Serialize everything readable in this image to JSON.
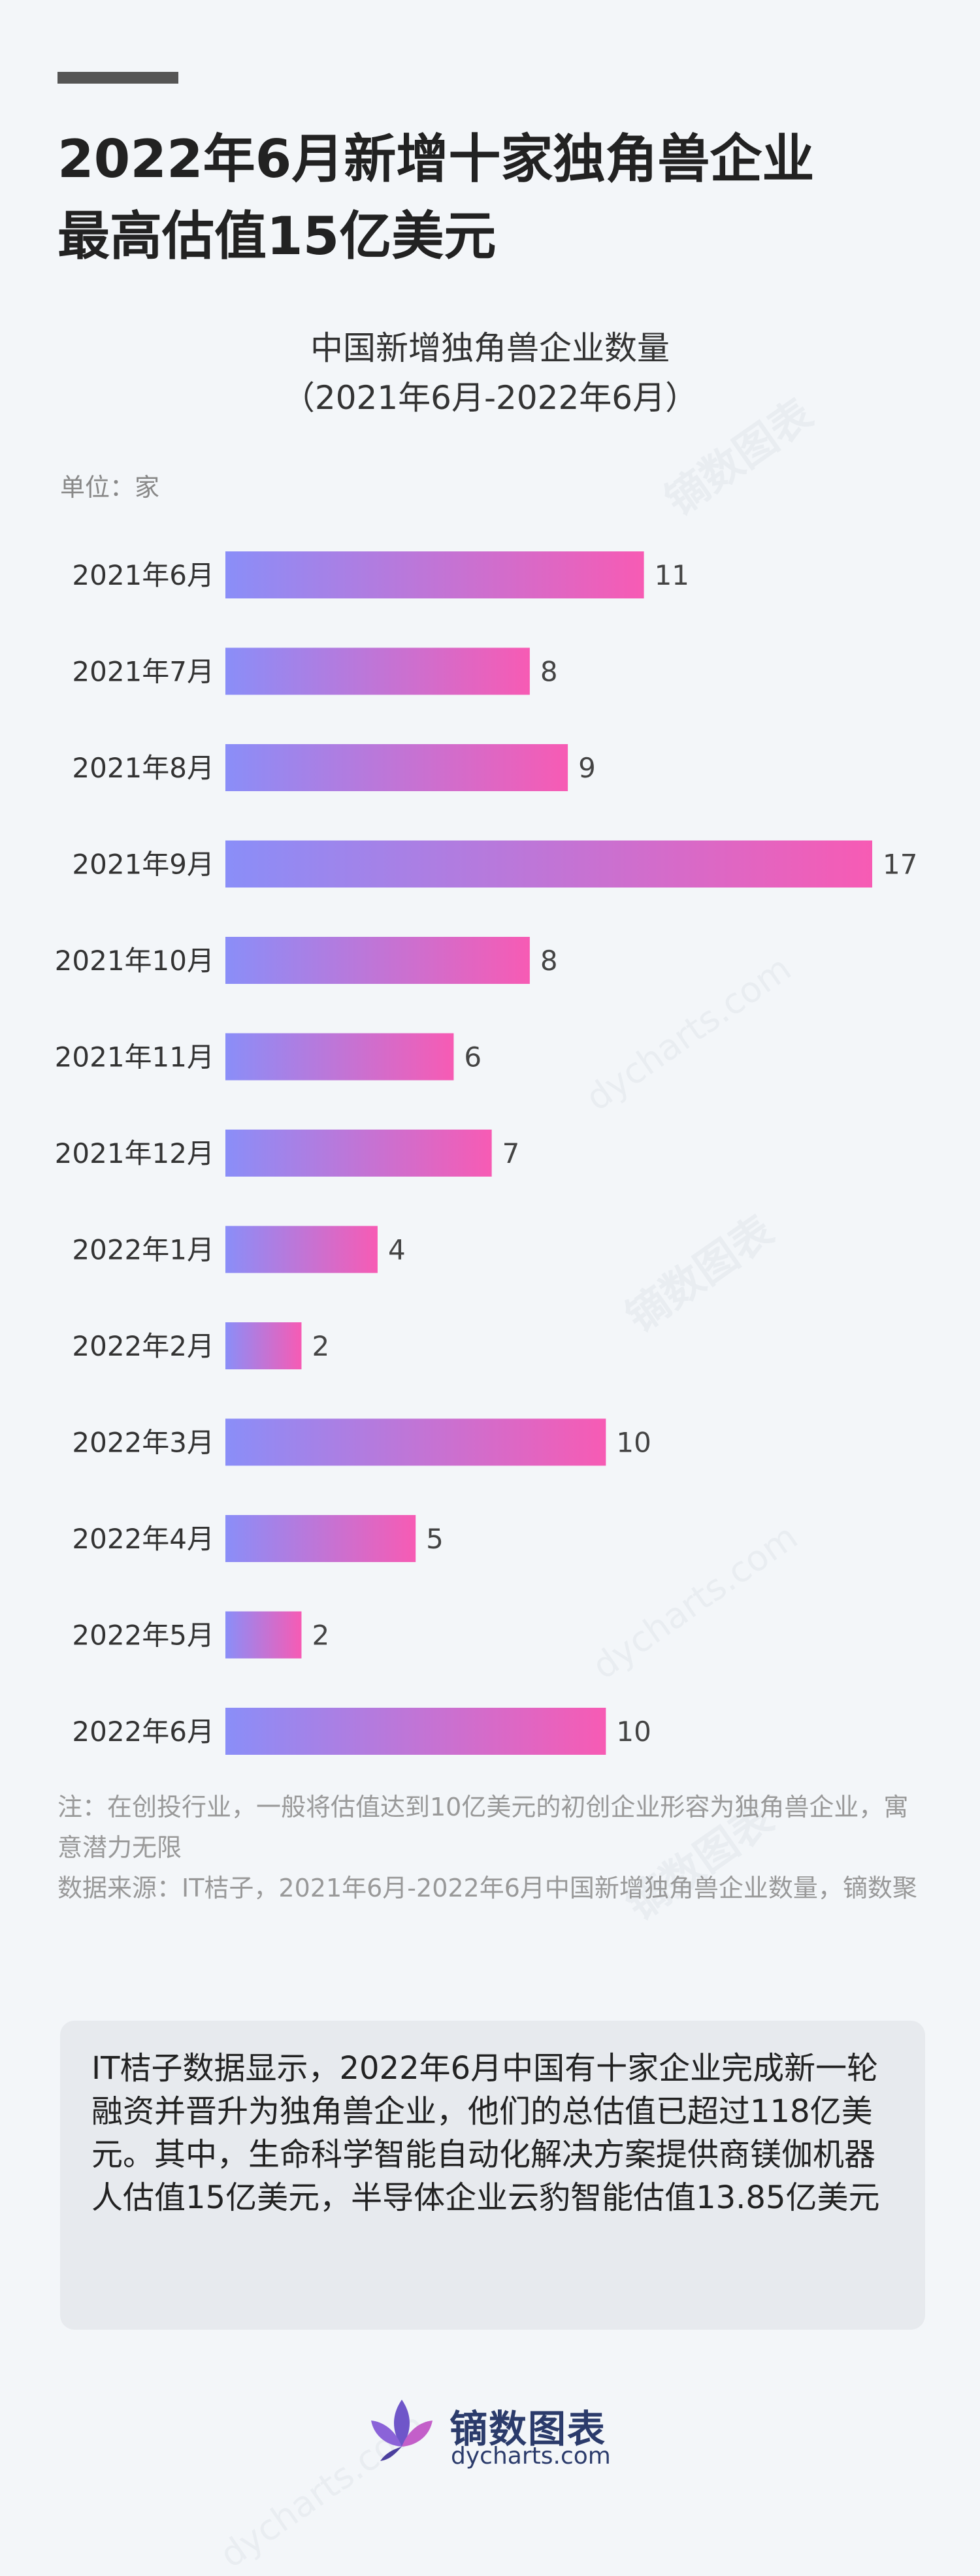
{
  "headline": {
    "line1": "2022年6月新增十家独角兽企业",
    "line2": "最高估值15亿美元"
  },
  "chart_data": {
    "type": "bar",
    "orientation": "horizontal",
    "title_line1": "中国新增独角兽企业数量",
    "title_line2": "（2021年6月-2022年6月）",
    "unit": "单位：家",
    "categories": [
      "2021年6月",
      "2021年7月",
      "2021年8月",
      "2021年9月",
      "2021年10月",
      "2021年11月",
      "2021年12月",
      "2022年1月",
      "2022年2月",
      "2022年3月",
      "2022年4月",
      "2022年5月",
      "2022年6月"
    ],
    "values": [
      11,
      8,
      9,
      17,
      8,
      6,
      7,
      4,
      2,
      10,
      5,
      2,
      10
    ],
    "xlim": [
      0,
      17
    ],
    "grid": false,
    "colors": {
      "gradient_start": "#8a8ef8",
      "gradient_end": "#f75bb4"
    }
  },
  "notes": {
    "note": "注：在创投行业，一般将估值达到10亿美元的初创企业形容为独角兽企业，寓意潜力无限",
    "source": "数据来源：IT桔子，2021年6月-2022年6月中国新增独角兽企业数量，镝数聚"
  },
  "summary": "IT桔子数据显示，2022年6月中国有十家企业完成新一轮融资并晋升为独角兽企业，他们的总估值已超过118亿美元。其中，生命科学智能自动化解决方案提供商镁伽机器人估值15亿美元，半导体企业云豹智能估值13.85亿美元",
  "brand": {
    "name": "镝数图表",
    "url": "dycharts.com"
  },
  "watermark": {
    "name": "镝数图表",
    "url": "dycharts.com"
  }
}
